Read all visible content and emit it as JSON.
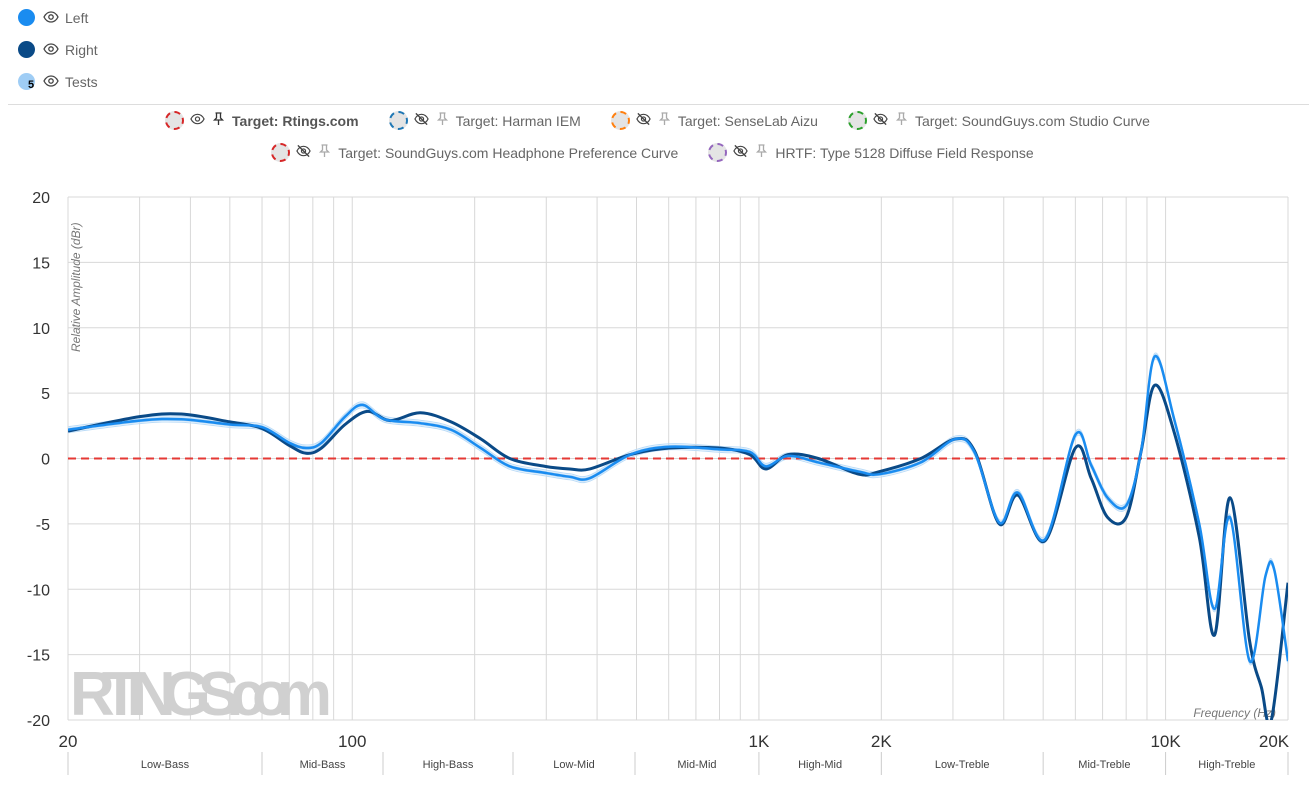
{
  "legend": [
    {
      "label": "Left",
      "color": "#1a8cf0",
      "icon": "eye-icon"
    },
    {
      "label": "Right",
      "color": "#0a4a87",
      "icon": "eye-icon"
    },
    {
      "label": "Tests",
      "color": "#9fcdf5",
      "count": "5",
      "icon": "eye-icon"
    }
  ],
  "targets": [
    [
      {
        "label": "Target: Rtings.com",
        "color": "#d62728",
        "visible": true,
        "pinned": true
      },
      {
        "label": "Target: Harman IEM",
        "color": "#1f77b4",
        "visible": false
      },
      {
        "label": "Target: SenseLab Aizu",
        "color": "#ff7f0e",
        "visible": false
      },
      {
        "label": "Target: SoundGuys.com Studio Curve",
        "color": "#2ca02c",
        "visible": false
      }
    ],
    [
      {
        "label": "Target: SoundGuys.com Headphone Preference Curve",
        "color": "#d62728",
        "visible": false
      },
      {
        "label": "HRTF: Type 5128 Diffuse Field Response",
        "color": "#9467bd",
        "visible": false
      }
    ]
  ],
  "watermark": "RTINGS.com",
  "chart_data": {
    "type": "line",
    "xlabel": "Frequency (Hz)",
    "ylabel": "Relative Amplitude (dBr)",
    "xscale": "log",
    "xlim": [
      20,
      20000
    ],
    "ylim": [
      -20,
      20
    ],
    "yticks": [
      20,
      15,
      10,
      5,
      0,
      -5,
      -10,
      -15,
      -20
    ],
    "xticks": [
      {
        "v": 20,
        "label": "20"
      },
      {
        "v": 100,
        "label": "100"
      },
      {
        "v": 1000,
        "label": "1K"
      },
      {
        "v": 2000,
        "label": "2K"
      },
      {
        "v": 10000,
        "label": "10K"
      },
      {
        "v": 20000,
        "label": "20K"
      }
    ],
    "bands": [
      {
        "label": "Low-Bass",
        "from": 20,
        "to": 60
      },
      {
        "label": "Mid-Bass",
        "from": 60,
        "to": 120
      },
      {
        "label": "High-Bass",
        "from": 120,
        "to": 250
      },
      {
        "label": "Low-Mid",
        "from": 250,
        "to": 500
      },
      {
        "label": "Mid-Mid",
        "from": 500,
        "to": 1000
      },
      {
        "label": "High-Mid",
        "from": 1000,
        "to": 2000
      },
      {
        "label": "Low-Treble",
        "from": 2000,
        "to": 5000
      },
      {
        "label": "Mid-Treble",
        "from": 5000,
        "to": 10000
      },
      {
        "label": "High-Treble",
        "from": 10000,
        "to": 20000
      }
    ],
    "target": {
      "name": "Target: Rtings.com",
      "color": "#e53935",
      "value": 0
    },
    "series": [
      {
        "name": "Left",
        "color": "#1a8cf0",
        "points": [
          [
            20,
            2.2
          ],
          [
            30,
            2.9
          ],
          [
            38,
            3.0
          ],
          [
            50,
            2.6
          ],
          [
            60,
            2.4
          ],
          [
            70,
            1.2
          ],
          [
            77,
            0.8
          ],
          [
            84,
            1.2
          ],
          [
            96,
            3.2
          ],
          [
            106,
            4.1
          ],
          [
            120,
            3.0
          ],
          [
            147,
            2.7
          ],
          [
            175,
            2.2
          ],
          [
            207,
            0.8
          ],
          [
            244,
            -0.6
          ],
          [
            298,
            -1.1
          ],
          [
            343,
            -1.4
          ],
          [
            384,
            -1.5
          ],
          [
            483,
            0.3
          ],
          [
            603,
            0.9
          ],
          [
            800,
            0.7
          ],
          [
            950,
            0.5
          ],
          [
            1040,
            -0.6
          ],
          [
            1180,
            0.2
          ],
          [
            1400,
            -0.3
          ],
          [
            1760,
            -1.0
          ],
          [
            1980,
            -1.2
          ],
          [
            2500,
            -0.3
          ],
          [
            3050,
            1.5
          ],
          [
            3400,
            0.4
          ],
          [
            3900,
            -4.9
          ],
          [
            4330,
            -2.6
          ],
          [
            5050,
            -6.2
          ],
          [
            6000,
            1.8
          ],
          [
            6560,
            -0.5
          ],
          [
            7200,
            -3.0
          ],
          [
            8000,
            -3.6
          ],
          [
            8700,
            0.5
          ],
          [
            9400,
            7.8
          ],
          [
            10500,
            3.0
          ],
          [
            12100,
            -5.0
          ],
          [
            13200,
            -11.5
          ],
          [
            14400,
            -4.5
          ],
          [
            16100,
            -15.5
          ],
          [
            17600,
            -9
          ],
          [
            18500,
            -8.5
          ],
          [
            20000,
            -15.5
          ]
        ]
      },
      {
        "name": "Right",
        "color": "#0a4a87",
        "points": [
          [
            20,
            2.1
          ],
          [
            30,
            3.2
          ],
          [
            38,
            3.4
          ],
          [
            50,
            2.8
          ],
          [
            60,
            2.3
          ],
          [
            70,
            1.0
          ],
          [
            77,
            0.4
          ],
          [
            84,
            0.8
          ],
          [
            96,
            2.6
          ],
          [
            109,
            3.6
          ],
          [
            124,
            2.9
          ],
          [
            147,
            3.5
          ],
          [
            175,
            2.8
          ],
          [
            207,
            1.5
          ],
          [
            244,
            0.0
          ],
          [
            298,
            -0.6
          ],
          [
            343,
            -0.8
          ],
          [
            384,
            -0.8
          ],
          [
            483,
            0.3
          ],
          [
            603,
            0.8
          ],
          [
            800,
            0.8
          ],
          [
            950,
            0.3
          ],
          [
            1040,
            -0.8
          ],
          [
            1180,
            0.3
          ],
          [
            1400,
            0.0
          ],
          [
            1760,
            -1.2
          ],
          [
            1980,
            -1.0
          ],
          [
            2500,
            0.0
          ],
          [
            3050,
            1.5
          ],
          [
            3400,
            0.5
          ],
          [
            3900,
            -5.0
          ],
          [
            4330,
            -2.8
          ],
          [
            5050,
            -6.3
          ],
          [
            6000,
            0.8
          ],
          [
            6560,
            -1.5
          ],
          [
            7200,
            -4.5
          ],
          [
            8000,
            -4.5
          ],
          [
            8700,
            0.5
          ],
          [
            9400,
            5.6
          ],
          [
            10500,
            2.0
          ],
          [
            12100,
            -6.0
          ],
          [
            13200,
            -13.5
          ],
          [
            14400,
            -3.0
          ],
          [
            16100,
            -14
          ],
          [
            17200,
            -17.5
          ],
          [
            18200,
            -20
          ],
          [
            20000,
            -9.5
          ]
        ]
      }
    ]
  }
}
